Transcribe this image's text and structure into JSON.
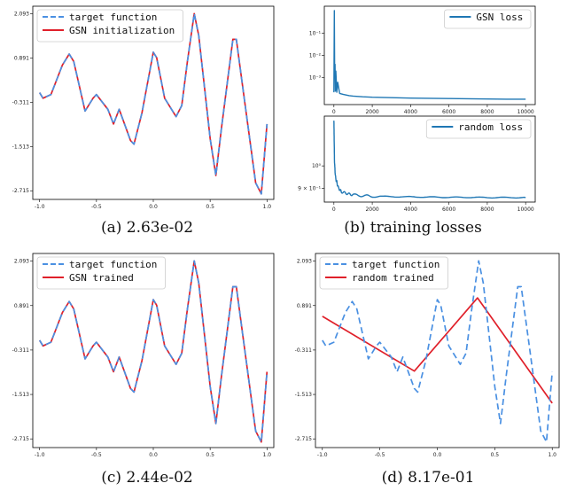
{
  "chart_data": [
    {
      "id": "a",
      "type": "line",
      "caption": "(a) 2.63e-02",
      "xlim": [
        -1.06,
        1.06
      ],
      "ylim": [
        -2.95,
        2.3
      ],
      "xticks": [
        -1.0,
        -0.5,
        0.0,
        0.5,
        1.0
      ],
      "xtick_labels": [
        "-1.0",
        "-0.5",
        "0.0",
        "0.5",
        "1.0"
      ],
      "yticks": [
        2.093,
        0.891,
        -0.311,
        -1.513,
        -2.715
      ],
      "ytick_labels": [
        "2.093",
        "0.891",
        "-0.311",
        "-1.513",
        "-2.715"
      ],
      "legend_position": "top-left",
      "series": [
        {
          "name": "target function",
          "style": "dashed",
          "color": "#4a90e2",
          "data_ref": "target"
        },
        {
          "name": "GSN initialization",
          "style": "solid",
          "color": "#e0202a",
          "data_ref": "target"
        }
      ]
    },
    {
      "id": "b1",
      "type": "line",
      "scale_y": "log",
      "xlim": [
        -500,
        10500
      ],
      "ylim": [
        1.8,
        6.2
      ],
      "xticks": [
        0,
        2000,
        4000,
        6000,
        8000,
        10000
      ],
      "xtick_labels": [
        "0",
        "2000",
        "4000",
        "6000",
        "8000",
        "10000"
      ],
      "yticks": [
        3,
        4,
        5
      ],
      "ytick_labels": [
        "10⁻³",
        "10⁻²",
        "10⁻¹"
      ],
      "legend_position": "top-right",
      "series": [
        {
          "name": "GSN loss",
          "color": "#1f77b4"
        }
      ]
    },
    {
      "id": "b2",
      "type": "line",
      "scale_y": "log",
      "caption": "(b) training losses",
      "xlim": [
        -500,
        10500
      ],
      "ylim": [
        0.84,
        1.22
      ],
      "xticks": [
        0,
        2000,
        4000,
        6000,
        8000,
        10000
      ],
      "xtick_labels": [
        "0",
        "2000",
        "4000",
        "6000",
        "8000",
        "10000"
      ],
      "yticks": [
        1.0,
        0.9
      ],
      "ytick_labels": [
        "10⁰",
        "9 × 10⁻¹"
      ],
      "legend_position": "top-right",
      "series": [
        {
          "name": "random loss",
          "color": "#1f77b4"
        }
      ]
    },
    {
      "id": "c",
      "type": "line",
      "caption": "(c) 2.44e-02",
      "xlim": [
        -1.06,
        1.06
      ],
      "ylim": [
        -2.95,
        2.3
      ],
      "xticks": [
        -1.0,
        -0.5,
        0.0,
        0.5,
        1.0
      ],
      "xtick_labels": [
        "-1.0",
        "-0.5",
        "0.0",
        "0.5",
        "1.0"
      ],
      "yticks": [
        2.093,
        0.891,
        -0.311,
        -1.513,
        -2.715
      ],
      "ytick_labels": [
        "2.093",
        "0.891",
        "-0.311",
        "-1.513",
        "-2.715"
      ],
      "legend_position": "top-left",
      "series": [
        {
          "name": "target function",
          "style": "dashed",
          "color": "#4a90e2",
          "data_ref": "target"
        },
        {
          "name": "GSN trained",
          "style": "solid",
          "color": "#e0202a",
          "data_ref": "target"
        }
      ]
    },
    {
      "id": "d",
      "type": "line",
      "caption": "(d) 8.17e-01",
      "xlim": [
        -1.06,
        1.06
      ],
      "ylim": [
        -2.95,
        2.3
      ],
      "xticks": [
        -1.0,
        -0.5,
        0.0,
        0.5,
        1.0
      ],
      "xtick_labels": [
        "-1.0",
        "-0.5",
        "0.0",
        "0.5",
        "1.0"
      ],
      "yticks": [
        2.093,
        0.891,
        -0.311,
        -1.513,
        -2.715
      ],
      "ytick_labels": [
        "2.093",
        "0.891",
        "-0.311",
        "-1.513",
        "-2.715"
      ],
      "legend_position": "top-left",
      "series": [
        {
          "name": "target function",
          "style": "dashed",
          "color": "#4a90e2",
          "data_ref": "target"
        },
        {
          "name": "random trained",
          "style": "solid",
          "color": "#e0202a",
          "data_ref": "random_fit"
        }
      ]
    }
  ],
  "curves": {
    "target": {
      "x": [
        -1.0,
        -0.97,
        -0.9,
        -0.8,
        -0.74,
        -0.7,
        -0.6,
        -0.53,
        -0.5,
        -0.4,
        -0.35,
        -0.3,
        -0.2,
        -0.17,
        -0.1,
        0.0,
        0.03,
        0.1,
        0.2,
        0.25,
        0.3,
        0.36,
        0.4,
        0.5,
        0.55,
        0.6,
        0.7,
        0.73,
        0.8,
        0.9,
        0.95,
        1.0
      ],
      "y": [
        -0.05,
        -0.2,
        -0.1,
        0.7,
        1.0,
        0.8,
        -0.55,
        -0.2,
        -0.1,
        -0.5,
        -0.9,
        -0.5,
        -1.35,
        -1.45,
        -0.6,
        1.05,
        0.9,
        -0.2,
        -0.7,
        -0.4,
        0.8,
        2.1,
        1.5,
        -1.3,
        -2.3,
        -1.0,
        1.4,
        1.4,
        -0.2,
        -2.5,
        -2.8,
        -0.9
      ]
    },
    "random_fit": {
      "x": [
        -1.0,
        -0.2,
        0.35,
        1.0
      ],
      "y": [
        0.6,
        -0.88,
        1.1,
        -1.75
      ]
    }
  },
  "loss_curves": {
    "gsn": {
      "x": [
        0,
        20,
        40,
        60,
        80,
        100,
        150,
        200,
        300,
        500,
        800,
        1000,
        1500,
        2000,
        3000,
        4000,
        5000,
        6000,
        7000,
        8000,
        9000,
        10000
      ],
      "y": [
        2.35,
        6.0,
        3.0,
        3.6,
        2.4,
        3.3,
        2.35,
        2.8,
        2.3,
        2.25,
        2.2,
        2.18,
        2.15,
        2.13,
        2.11,
        2.09,
        2.08,
        2.07,
        2.06,
        2.05,
        2.04,
        2.04
      ]
    },
    "random": {
      "x": [
        0,
        30,
        60,
        100,
        150,
        200,
        300,
        400,
        600,
        800,
        1000,
        1500,
        2000,
        3000,
        4000,
        5000,
        6000,
        7000,
        8000,
        9000,
        10000
      ],
      "y": [
        1.2,
        1.02,
        0.975,
        0.94,
        0.93,
        0.91,
        0.895,
        0.885,
        0.88,
        0.875,
        0.872,
        0.868,
        0.866,
        0.864,
        0.863,
        0.862,
        0.861,
        0.861,
        0.86,
        0.86,
        0.86
      ],
      "noise_amplitude": 0.006
    }
  }
}
